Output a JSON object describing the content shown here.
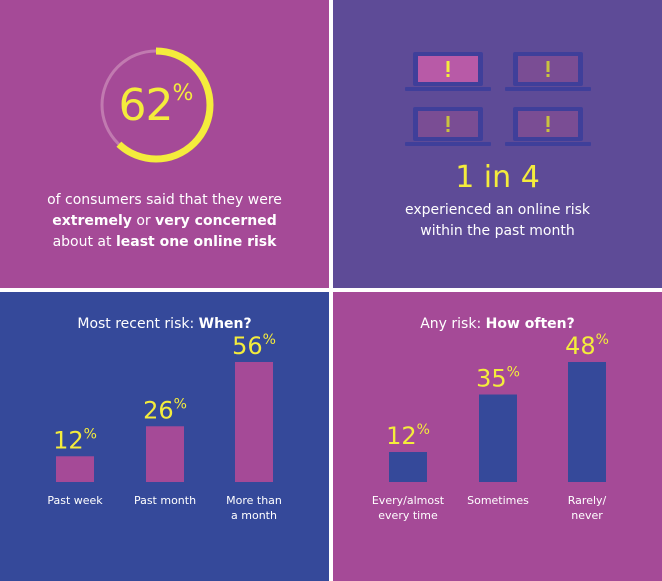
{
  "top_left": {
    "stat_value": 62,
    "stat_number": "62",
    "stat_unit": "%",
    "ring_color": "#f4ec3c",
    "caption_line1": "of consumers said that they were",
    "caption_line2_bold1": "extremely",
    "caption_line2_mid": " or ",
    "caption_line2_bold2": "very concerned",
    "caption_line3_start": "about at ",
    "caption_line3_bold": "least one online risk"
  },
  "top_right": {
    "stat": "1 in 4",
    "caption_line1": "experienced an online risk",
    "caption_line2": "within the past month",
    "laptops_total": 4,
    "laptops_highlighted": 1
  },
  "colors": {
    "panel_magenta": "#a54a97",
    "panel_purple": "#5e4b97",
    "panel_blue": "#35499a",
    "accent_yellow": "#f4ec3c"
  },
  "chart_data": [
    {
      "type": "bar",
      "title_start": "Most recent risk: ",
      "title_bold": "When?",
      "categories": [
        [
          "Past week"
        ],
        [
          "Past month"
        ],
        [
          "More than",
          "a month"
        ]
      ],
      "values": [
        12,
        26,
        56
      ],
      "unit": "%",
      "ylim": [
        0,
        56
      ],
      "bar_color": "#a54a97",
      "grid": false
    },
    {
      "type": "bar",
      "title_start": "Any risk: ",
      "title_bold": "How often?",
      "categories": [
        [
          "Every/almost",
          "every time"
        ],
        [
          "Sometimes"
        ],
        [
          "Rarely/",
          "never"
        ]
      ],
      "values": [
        12,
        35,
        48
      ],
      "unit": "%",
      "ylim": [
        0,
        48
      ],
      "bar_color": "#35499a",
      "grid": false
    }
  ]
}
